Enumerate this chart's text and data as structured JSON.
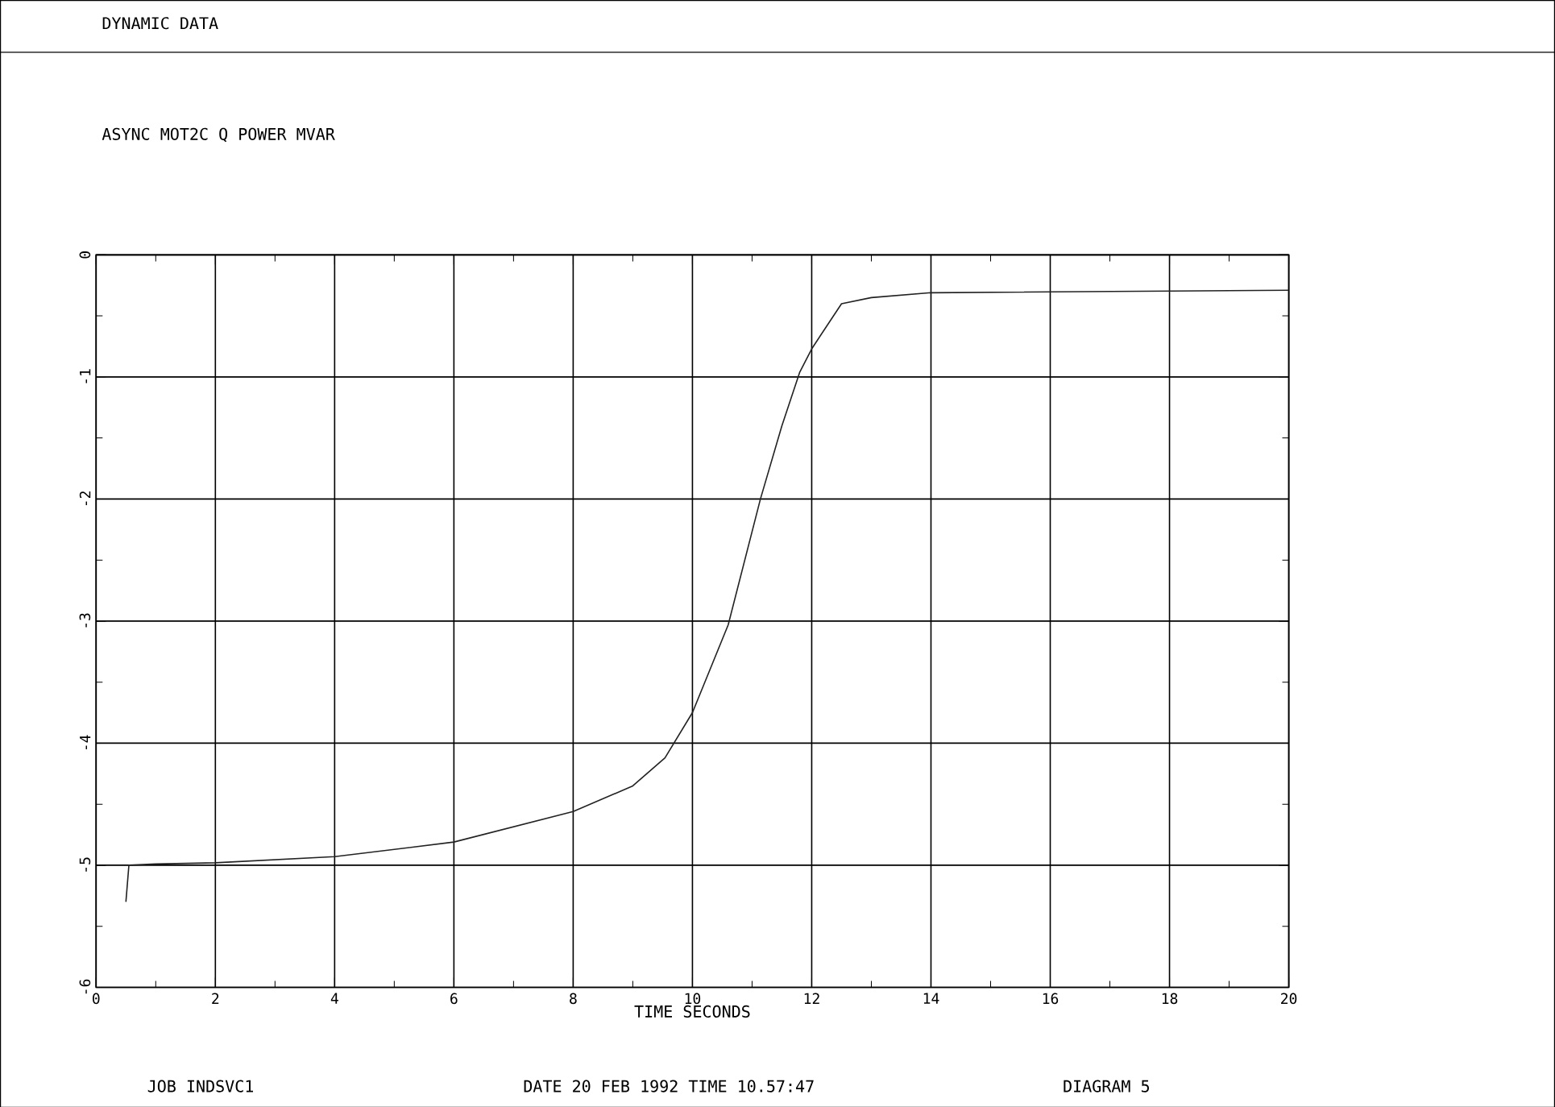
{
  "chart_data": {
    "type": "line",
    "title": "DYNAMIC DATA",
    "subtitle": "ASYNC MOT2C   Q POWER   MVAR",
    "xlabel": "TIME SECONDS",
    "annotations": [
      "JOB INDSVC1",
      "DATE 20 FEB 1992 TIME 10.57:47",
      "DIAGRAM   5"
    ],
    "x": [
      0.5,
      0.55,
      1,
      2,
      4,
      6,
      8,
      9,
      9.54,
      10,
      10.6,
      11.14,
      11.5,
      11.8,
      12,
      12.5,
      13,
      14,
      20
    ],
    "series": [
      {
        "color": "#222222",
        "values": [
          -5.3,
          -5.0,
          -4.99,
          -4.98,
          -4.93,
          -4.81,
          -4.56,
          -4.35,
          -4.12,
          -3.75,
          -3.03,
          -2.0,
          -1.4,
          -0.96,
          -0.77,
          -0.4,
          -0.35,
          -0.31,
          -0.29
        ]
      }
    ],
    "xlim": [
      0,
      20
    ],
    "ylim": [
      -6,
      0
    ],
    "xticks": [
      0,
      2,
      4,
      6,
      8,
      10,
      12,
      14,
      16,
      18,
      20
    ],
    "yticks": [
      -6,
      -5,
      -4,
      -3,
      -2,
      -1,
      0
    ],
    "grid": true
  }
}
